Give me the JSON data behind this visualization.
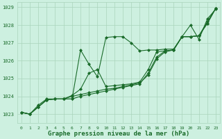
{
  "xlabel": "Graphe pression niveau de la mer (hPa)",
  "background_color": "#cdf0e0",
  "grid_color": "#aad4bb",
  "line_color": "#1a6b2a",
  "xlim": [
    -0.5,
    23.5
  ],
  "ylim": [
    1022.5,
    1029.3
  ],
  "yticks": [
    1023,
    1024,
    1025,
    1026,
    1027,
    1028,
    1029
  ],
  "xticks": [
    0,
    1,
    2,
    3,
    4,
    5,
    6,
    7,
    8,
    9,
    10,
    11,
    12,
    13,
    14,
    15,
    16,
    17,
    18,
    19,
    20,
    21,
    22,
    23
  ],
  "series1_x": [
    0,
    1,
    2,
    3,
    4,
    5,
    6,
    7,
    8,
    9,
    10,
    11,
    12,
    13,
    14,
    15,
    16,
    17,
    18,
    19,
    20,
    21,
    22,
    23
  ],
  "series1_y": [
    1023.1,
    1023.0,
    1023.5,
    1023.85,
    1023.85,
    1023.85,
    1023.85,
    1026.6,
    1025.8,
    1025.1,
    1027.3,
    1027.35,
    1027.35,
    1027.0,
    1026.55,
    1026.6,
    1026.6,
    1026.65,
    1026.65,
    1027.35,
    1028.0,
    1027.2,
    1028.35,
    1028.9
  ],
  "series2_x": [
    0,
    1,
    2,
    3,
    4,
    5,
    6,
    7,
    8,
    9,
    10,
    11,
    12,
    13,
    14,
    15,
    16,
    17,
    18,
    19,
    20,
    21,
    22,
    23
  ],
  "series2_y": [
    1023.1,
    1023.0,
    1023.4,
    1023.8,
    1023.85,
    1023.85,
    1023.85,
    1024.0,
    1024.1,
    1024.2,
    1024.3,
    1024.4,
    1024.5,
    1024.6,
    1024.7,
    1025.3,
    1026.2,
    1026.55,
    1026.6,
    1027.35,
    1027.35,
    1027.4,
    1028.2,
    1028.95
  ],
  "series3_x": [
    0,
    1,
    2,
    3,
    4,
    5,
    6,
    7,
    8,
    9,
    10,
    11,
    12,
    13,
    14,
    15,
    16,
    17,
    18,
    19,
    20,
    21,
    22,
    23
  ],
  "series3_y": [
    1023.1,
    1023.0,
    1023.4,
    1023.8,
    1023.85,
    1023.85,
    1024.0,
    1024.1,
    1024.2,
    1024.3,
    1024.4,
    1024.45,
    1024.55,
    1024.65,
    1024.75,
    1025.2,
    1026.1,
    1026.5,
    1026.6,
    1027.35,
    1027.35,
    1027.4,
    1028.1,
    1028.95
  ],
  "series4_x": [
    0,
    1,
    2,
    3,
    4,
    5,
    6,
    7,
    8,
    9,
    10,
    11,
    12,
    13,
    14,
    15,
    16,
    17,
    18,
    19,
    20,
    21,
    22,
    23
  ],
  "series4_y": [
    1023.1,
    1023.0,
    1023.4,
    1023.8,
    1023.85,
    1023.85,
    1024.05,
    1024.4,
    1025.3,
    1025.5,
    1024.55,
    1024.6,
    1024.65,
    1024.7,
    1024.8,
    1025.5,
    1026.5,
    1026.55,
    1026.6,
    1027.35,
    1027.35,
    1027.4,
    1028.1,
    1028.95
  ]
}
